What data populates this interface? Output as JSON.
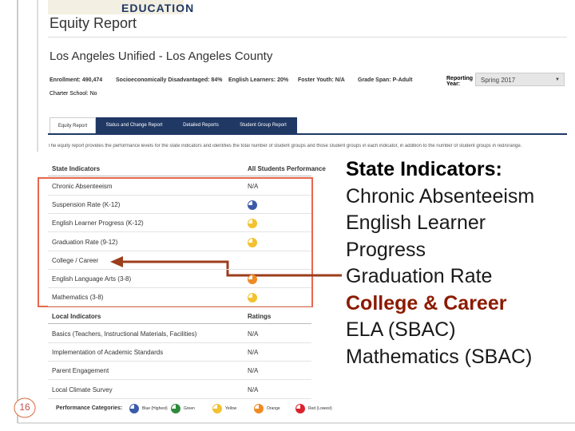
{
  "header": {
    "logo_text": "EDUCATION",
    "title": "Equity Report",
    "lea": "Los Angeles Unified - Los Angeles County"
  },
  "info": {
    "items": [
      "Enrollment: 490,474",
      "Socioeconomically Disadvantaged: 84%",
      "English Learners: 20%",
      "Foster Youth: N/A",
      "Grade Span: P-Adult"
    ],
    "reporting_label": "Reporting Year:",
    "reporting_value": "Spring 2017",
    "charter": "Charter School: No"
  },
  "tabs": [
    "Equity Report",
    "Status and Change Report",
    "Detailed Reports",
    "Student Group Report"
  ],
  "description": "The equity report provides the performance levels for the state indicators and identifies the total number of student groups and those student groups in each indicator, in addition to the number of student groups in red/orange.",
  "state_table": {
    "header": [
      "State Indicators",
      "All Students Performance"
    ],
    "rows": [
      {
        "name": "Chronic Absenteeism",
        "performance": "N/A"
      },
      {
        "name": "Suspension Rate (K-12)",
        "icon": "#3b5ba9"
      },
      {
        "name": "English Learner Progress (K-12)",
        "icon": "#f2c230"
      },
      {
        "name": "Graduation Rate (9-12)",
        "icon": "#f2c230"
      },
      {
        "name": "College / Career"
      },
      {
        "name": "English Language Arts (3-8)",
        "icon": "#f08a24"
      },
      {
        "name": "Mathematics (3-8)",
        "icon": "#f2c230"
      }
    ]
  },
  "local_table": {
    "header": [
      "Local Indicators",
      "Ratings"
    ],
    "rows": [
      {
        "name": "Basics (Teachers, Instructional Materials, Facilities)",
        "performance": "N/A"
      },
      {
        "name": "Implementation of Academic Standards",
        "performance": "N/A"
      },
      {
        "name": "Parent Engagement",
        "performance": "N/A"
      },
      {
        "name": "Local Climate Survey",
        "performance": "N/A"
      }
    ]
  },
  "legend": {
    "label": "Performance Categories:",
    "items": [
      {
        "text": "Blue (Highest)",
        "color": "#3b5ba9"
      },
      {
        "text": "Green",
        "color": "#2e8b3d"
      },
      {
        "text": "Yellow",
        "color": "#f2c230"
      },
      {
        "text": "Orange",
        "color": "#f08a24"
      },
      {
        "text": "Red (Lowest)",
        "color": "#d9232d"
      }
    ]
  },
  "callout": {
    "title": "State Indicators:",
    "items": [
      {
        "text": "Chronic Absenteeism"
      },
      {
        "text": "English Learner"
      },
      {
        "text": "Progress"
      },
      {
        "text": "Graduation Rate"
      },
      {
        "text": "College & Career",
        "emphasis": true
      },
      {
        "text": "ELA (SBAC)"
      },
      {
        "text": "Mathematics (SBAC)"
      }
    ]
  },
  "slide_number": "16"
}
